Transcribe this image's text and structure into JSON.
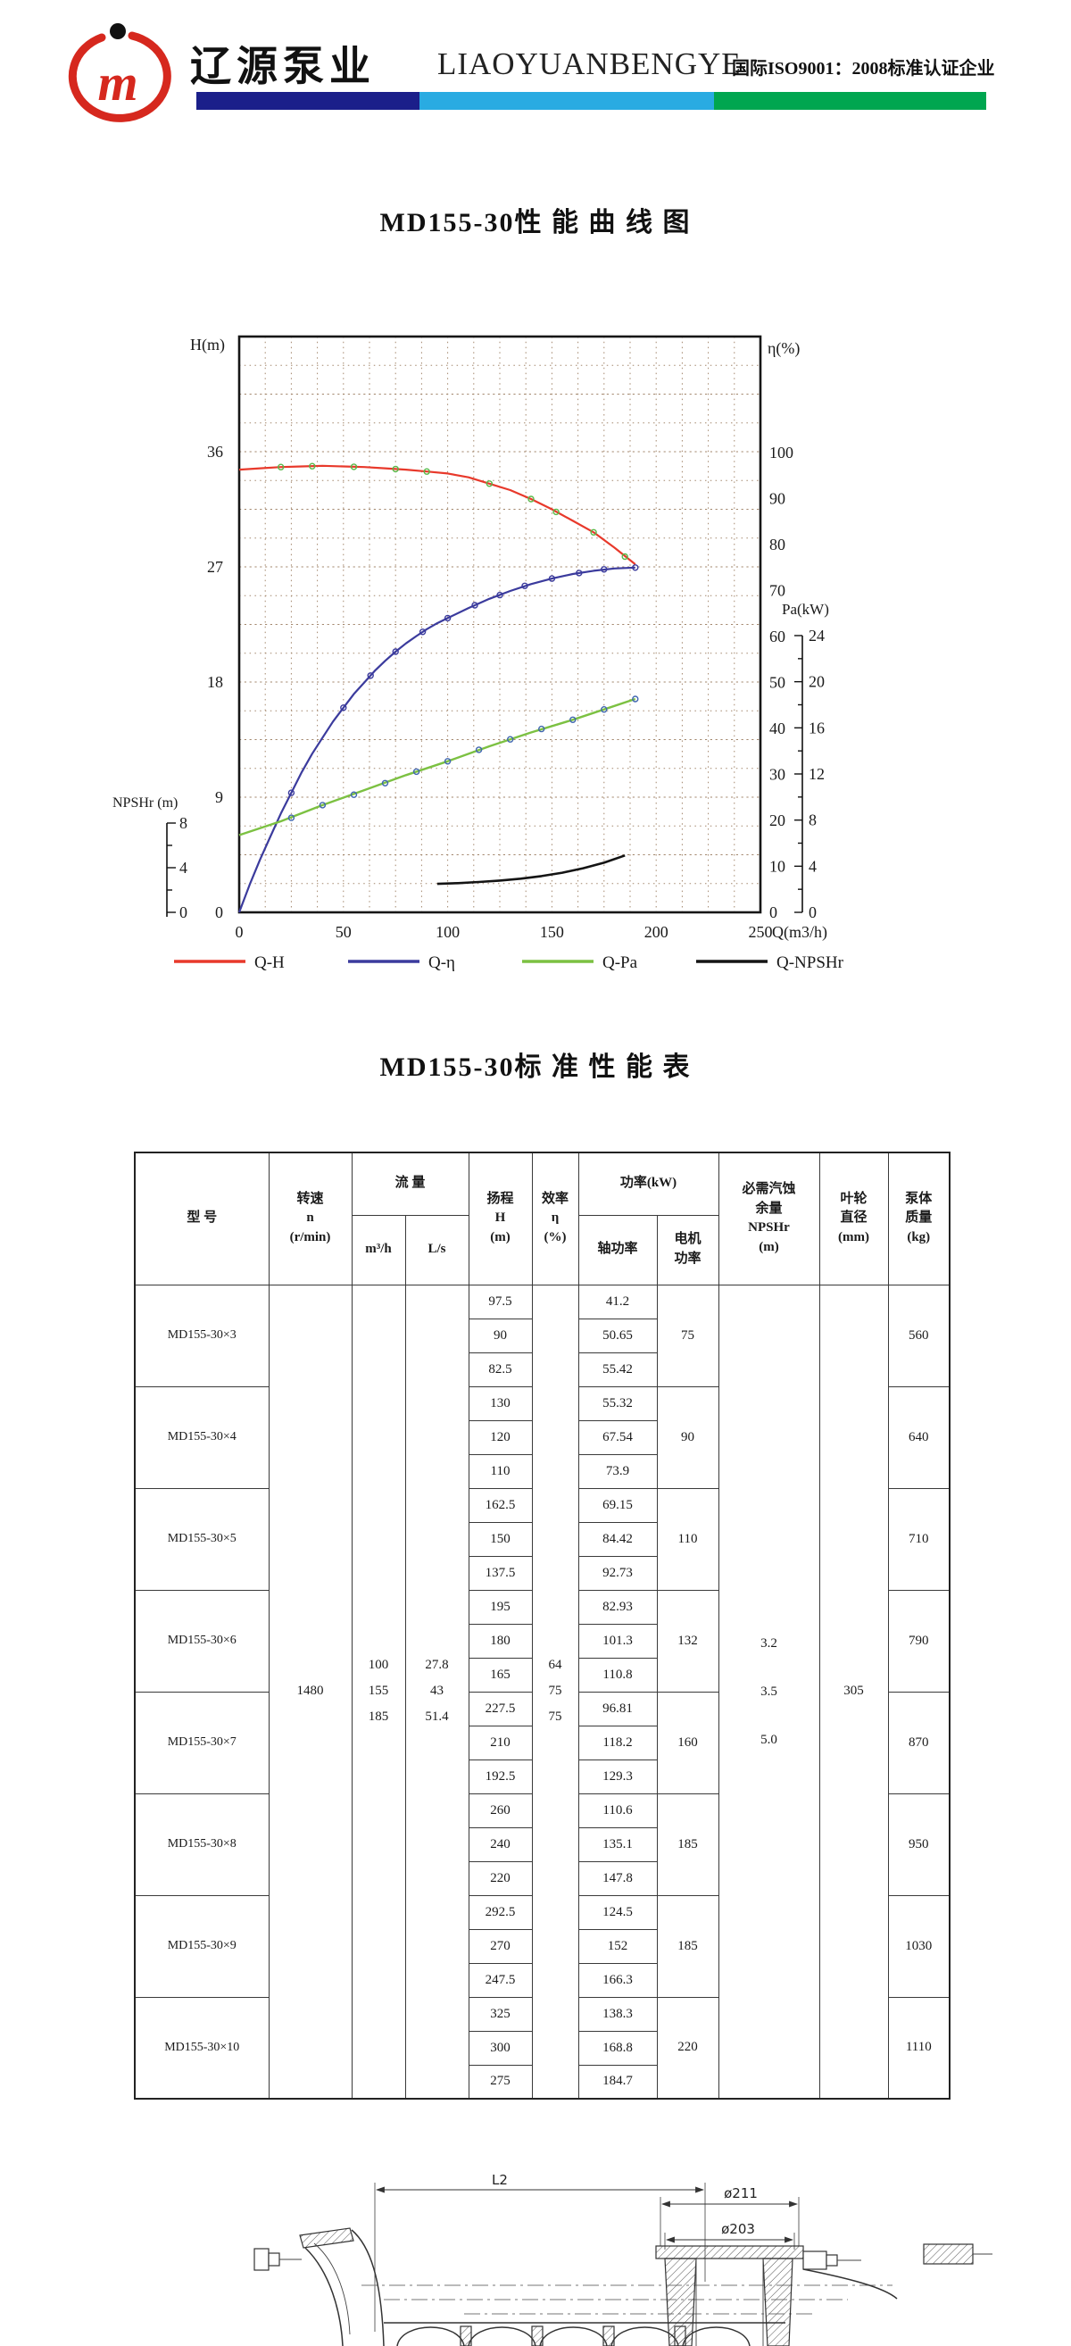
{
  "header": {
    "company_cn": "辽源泵业",
    "company_en": "LIAOYUANBENGYE",
    "cert_text": "国际ISO9001：2008标准认证企业",
    "logo_letter": "m",
    "colors": {
      "navy": "#1b1f8a",
      "light_blue": "#29abe2",
      "green": "#00a650",
      "logo_red": "#d6281e"
    }
  },
  "chart": {
    "title": "MD155-30性 能 曲 线 图",
    "axis_labels": {
      "left_top": "H(m)",
      "right_top": "η(%)",
      "right_mid": "Pa(kW)",
      "x": "Q(m3/h)",
      "npshr": "NPSHr (m)"
    },
    "h_ticks": [
      36,
      27,
      18,
      9,
      0
    ],
    "eta_ticks": [
      100,
      90,
      80,
      70,
      60,
      50,
      40,
      30,
      20,
      10,
      0
    ],
    "pa_ticks": [
      24,
      20,
      16,
      12,
      8,
      4,
      0
    ],
    "npshr_ticks": [
      8,
      4,
      0
    ],
    "x_ticks": [
      0,
      50,
      100,
      150,
      200,
      250
    ],
    "legend": [
      {
        "label": "Q-H",
        "color": "#e8392b"
      },
      {
        "label": "Q-η",
        "color": "#3b3b9d"
      },
      {
        "label": "Q-Pa",
        "color": "#7cc142"
      },
      {
        "label": "Q-NPSHr",
        "color": "#141414"
      }
    ]
  },
  "chart_data": {
    "type": "line",
    "title": "MD155-30性能曲线图",
    "xlabel": "Q(m3/h)",
    "x_range": [
      0,
      250
    ],
    "axes": {
      "H(m)": [
        0,
        45
      ],
      "eta(%)": [
        0,
        100
      ],
      "Pa(kW)": [
        0,
        24
      ],
      "NPSHr(m)": [
        0,
        8
      ]
    },
    "grid": "dotted",
    "legend_position": "bottom",
    "series": [
      {
        "name": "Q-H",
        "axis": "H",
        "color": "#e8392b",
        "width": 2.2,
        "marker_color": "#58b948",
        "points": [
          [
            0,
            34.6
          ],
          [
            10,
            34.7
          ],
          [
            20,
            34.8
          ],
          [
            30,
            34.85
          ],
          [
            40,
            34.9
          ],
          [
            50,
            34.85
          ],
          [
            60,
            34.8
          ],
          [
            70,
            34.7
          ],
          [
            80,
            34.6
          ],
          [
            90,
            34.45
          ],
          [
            100,
            34.3
          ],
          [
            110,
            34.0
          ],
          [
            120,
            33.5
          ],
          [
            130,
            33.0
          ],
          [
            140,
            32.3
          ],
          [
            150,
            31.5
          ],
          [
            160,
            30.6
          ],
          [
            170,
            29.7
          ],
          [
            180,
            28.5
          ],
          [
            190,
            27.2
          ]
        ],
        "markers": [
          [
            20,
            34.8
          ],
          [
            35,
            34.87
          ],
          [
            55,
            34.82
          ],
          [
            75,
            34.65
          ],
          [
            90,
            34.45
          ],
          [
            120,
            33.5
          ],
          [
            140,
            32.3
          ],
          [
            152,
            31.3
          ],
          [
            170,
            29.7
          ],
          [
            185,
            27.8
          ]
        ]
      },
      {
        "name": "Q-η",
        "axis": "eta",
        "color": "#3b3b9d",
        "width": 2.2,
        "marker_color": "#3b3b9d",
        "points": [
          [
            0,
            0
          ],
          [
            5,
            6
          ],
          [
            10,
            11.5
          ],
          [
            15,
            16.5
          ],
          [
            20,
            21.5
          ],
          [
            25,
            26
          ],
          [
            30,
            30.5
          ],
          [
            35,
            34.5
          ],
          [
            40,
            38
          ],
          [
            45,
            41.5
          ],
          [
            50,
            44.5
          ],
          [
            55,
            47.5
          ],
          [
            60,
            50
          ],
          [
            65,
            52.5
          ],
          [
            70,
            54.7
          ],
          [
            75,
            56.7
          ],
          [
            80,
            58.5
          ],
          [
            85,
            60.1
          ],
          [
            90,
            61.6
          ],
          [
            95,
            62.9
          ],
          [
            100,
            64
          ],
          [
            110,
            66.2
          ],
          [
            120,
            68.2
          ],
          [
            130,
            69.9
          ],
          [
            140,
            71.4
          ],
          [
            150,
            72.6
          ],
          [
            160,
            73.6
          ],
          [
            170,
            74.3
          ],
          [
            180,
            74.8
          ],
          [
            190,
            75
          ]
        ],
        "markers": [
          [
            25,
            26
          ],
          [
            50,
            44.5
          ],
          [
            63,
            51.5
          ],
          [
            75,
            56.7
          ],
          [
            88,
            61
          ],
          [
            100,
            64
          ],
          [
            113,
            66.8
          ],
          [
            125,
            69
          ],
          [
            137,
            71
          ],
          [
            150,
            72.6
          ],
          [
            163,
            73.8
          ],
          [
            175,
            74.6
          ],
          [
            190,
            75
          ]
        ]
      },
      {
        "name": "Q-Pa",
        "axis": "pa",
        "color": "#7cc142",
        "width": 2.4,
        "marker_color": "#4066b0",
        "points": [
          [
            0,
            6.7
          ],
          [
            20,
            7.9
          ],
          [
            40,
            9.3
          ],
          [
            60,
            10.6
          ],
          [
            80,
            11.9
          ],
          [
            100,
            13.1
          ],
          [
            120,
            14.4
          ],
          [
            140,
            15.6
          ],
          [
            160,
            16.7
          ],
          [
            175,
            17.6
          ],
          [
            190,
            18.5
          ]
        ],
        "markers": [
          [
            25,
            8.2
          ],
          [
            40,
            9.3
          ],
          [
            55,
            10.2
          ],
          [
            70,
            11.2
          ],
          [
            85,
            12.2
          ],
          [
            100,
            13.1
          ],
          [
            115,
            14.1
          ],
          [
            130,
            15.0
          ],
          [
            145,
            15.9
          ],
          [
            160,
            16.7
          ],
          [
            175,
            17.6
          ],
          [
            190,
            18.5
          ]
        ]
      },
      {
        "name": "Q-NPSHr",
        "axis": "npshr",
        "color": "#141414",
        "width": 2.6,
        "points": [
          [
            95,
            2.55
          ],
          [
            105,
            2.62
          ],
          [
            115,
            2.72
          ],
          [
            125,
            2.85
          ],
          [
            135,
            3.02
          ],
          [
            145,
            3.25
          ],
          [
            155,
            3.55
          ],
          [
            165,
            3.95
          ],
          [
            175,
            4.45
          ],
          [
            185,
            5.1
          ]
        ],
        "markers": []
      }
    ]
  },
  "table": {
    "title": "MD155-30标 准 性 能 表",
    "headers": {
      "model": "型 号",
      "speed": "转速\nn\n(r/min)",
      "flow": "流 量",
      "flow_m3h": "m³/h",
      "flow_ls": "L/s",
      "head": "扬程\nH\n(m)",
      "eff": "效率\nη\n(%)",
      "power": "功率(kW)",
      "shaft": "轴功率",
      "motor": "电机\n功率",
      "npshr": "必需汽蚀\n余量\nNPSHr\n(m)",
      "impeller": "叶轮\n直径\n(mm)",
      "mass": "泵体\n质量\n(kg)"
    },
    "shared": {
      "speed": "1480",
      "flow_m3h": [
        "100",
        "155",
        "185"
      ],
      "flow_ls": [
        "27.8",
        "43",
        "51.4"
      ],
      "eff": [
        "64",
        "75",
        "75"
      ],
      "npshr": [
        "3.2",
        "3.5",
        "5.0"
      ],
      "impeller": "305"
    },
    "groups": [
      {
        "model": "MD155-30×3",
        "head": [
          "97.5",
          "90",
          "82.5"
        ],
        "shaft": [
          "41.2",
          "50.65",
          "55.42"
        ],
        "motor": "75",
        "mass": "560"
      },
      {
        "model": "MD155-30×4",
        "head": [
          "130",
          "120",
          "110"
        ],
        "shaft": [
          "55.32",
          "67.54",
          "73.9"
        ],
        "motor": "90",
        "mass": "640"
      },
      {
        "model": "MD155-30×5",
        "head": [
          "162.5",
          "150",
          "137.5"
        ],
        "shaft": [
          "69.15",
          "84.42",
          "92.73"
        ],
        "motor": "110",
        "mass": "710"
      },
      {
        "model": "MD155-30×6",
        "head": [
          "195",
          "180",
          "165"
        ],
        "shaft": [
          "82.93",
          "101.3",
          "110.8"
        ],
        "motor": "132",
        "mass": "790"
      },
      {
        "model": "MD155-30×7",
        "head": [
          "227.5",
          "210",
          "192.5"
        ],
        "shaft": [
          "96.81",
          "118.2",
          "129.3"
        ],
        "motor": "160",
        "mass": "870"
      },
      {
        "model": "MD155-30×8",
        "head": [
          "260",
          "240",
          "220"
        ],
        "shaft": [
          "110.6",
          "135.1",
          "147.8"
        ],
        "motor": "185",
        "mass": "950"
      },
      {
        "model": "MD155-30×9",
        "head": [
          "292.5",
          "270",
          "247.5"
        ],
        "shaft": [
          "124.5",
          "152",
          "166.3"
        ],
        "motor": "185",
        "mass": "1030"
      },
      {
        "model": "MD155-30×10",
        "head": [
          "325",
          "300",
          "275"
        ],
        "shaft": [
          "138.3",
          "168.8",
          "184.7"
        ],
        "motor": "220",
        "mass": "1110"
      }
    ]
  },
  "drawing": {
    "dim_l2": "L2",
    "dim_d211": "ø211",
    "dim_d203": "ø203"
  }
}
